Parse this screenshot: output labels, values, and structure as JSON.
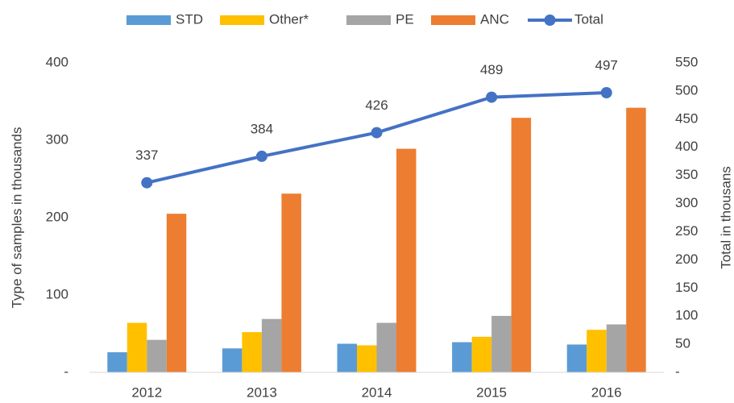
{
  "chart_data": {
    "type": "bar",
    "categories": [
      "2012",
      "2013",
      "2014",
      "2015",
      "2016"
    ],
    "series": [
      {
        "name": "STD",
        "color": "#5b9bd5",
        "values": [
          26,
          31,
          37,
          39,
          36
        ]
      },
      {
        "name": "Other*",
        "color": "#ffc000",
        "values": [
          64,
          52,
          35,
          46,
          55
        ]
      },
      {
        "name": "PE",
        "color": "#a5a5a5",
        "values": [
          42,
          69,
          64,
          73,
          62
        ]
      },
      {
        "name": "ANC",
        "color": "#ed7d31",
        "values": [
          205,
          231,
          289,
          329,
          342
        ]
      },
      {
        "name": "Total",
        "color": "#4472c4",
        "type": "line",
        "axis": "y2",
        "values": [
          337,
          384,
          426,
          489,
          497
        ]
      }
    ],
    "ylabel": "Type of samples in thousands",
    "y2label": "Total in thousans",
    "ylim": [
      0,
      400
    ],
    "yticks": [
      {
        "value": 0,
        "label": "-"
      },
      100,
      200,
      300,
      400
    ],
    "y2lim": [
      0,
      550
    ],
    "y2ticks": [
      {
        "value": 0,
        "label": "-"
      },
      50,
      100,
      150,
      200,
      250,
      300,
      350,
      400,
      450,
      500,
      550
    ],
    "grid": false,
    "legend": "top"
  }
}
